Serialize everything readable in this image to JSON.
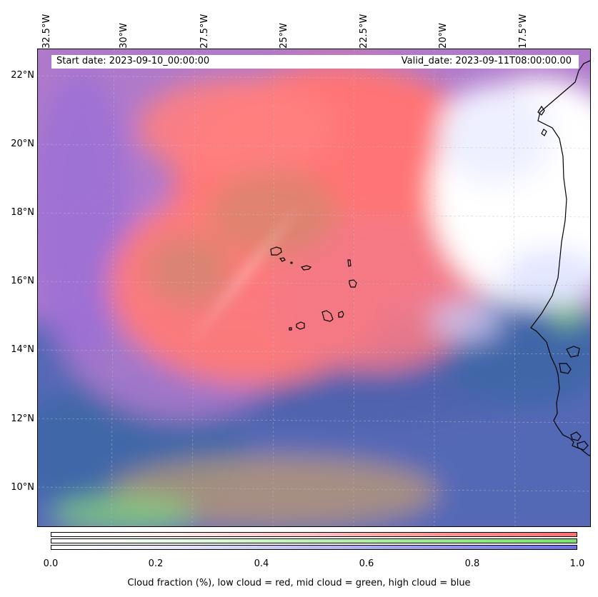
{
  "map": {
    "start_date": "Start date: 2023-09-10_00:00:00",
    "valid_date": "Valid_date: 2023-09-11T08:00:00.00",
    "lon_labels": [
      "32.5°W",
      "30°W",
      "27.5°W",
      "25°W",
      "22.5°W",
      "20°W",
      "17.5°W"
    ],
    "lat_labels": [
      "22°N",
      "20°N",
      "18°N",
      "16°N",
      "14°N",
      "12°N",
      "10°N"
    ],
    "extent": {
      "lon_min": -32.6,
      "lon_max": -15.5,
      "lat_min": 8.8,
      "lat_max": 22.8
    }
  },
  "colorbar": {
    "ticks": [
      "0.0",
      "0.2",
      "0.4",
      "0.6",
      "0.8",
      "1.0"
    ],
    "label": "Cloud fraction (%), low cloud = red, mid cloud = green, high cloud = blue",
    "colors": {
      "low": "#ff6f6f",
      "mid": "#7be26f",
      "high": "#6f6fe6"
    }
  }
}
